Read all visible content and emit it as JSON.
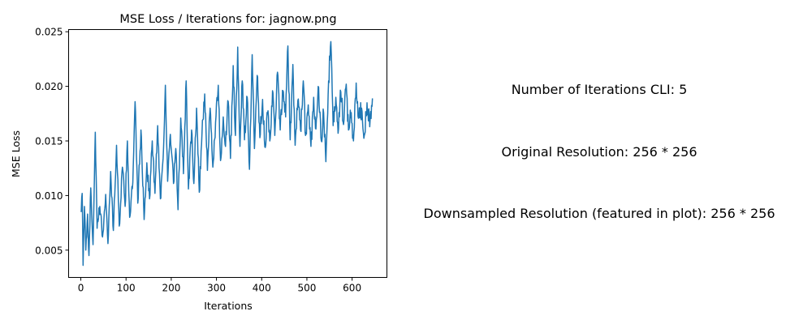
{
  "chart_data": {
    "type": "line",
    "title": "MSE Loss / Iterations for: jagnow.png",
    "xlabel": "Iterations",
    "ylabel": "MSE Loss",
    "xlim": [
      -27,
      677
    ],
    "ylim": [
      0.0025,
      0.0252
    ],
    "xticks": [
      0,
      100,
      200,
      300,
      400,
      500,
      600
    ],
    "yticks": [
      0.005,
      0.01,
      0.015,
      0.02,
      0.025
    ],
    "ytick_labels": [
      "0.005",
      "0.010",
      "0.015",
      "0.020",
      "0.025"
    ],
    "grid": false,
    "series": [
      {
        "color": "#1f77b4",
        "x_start": 0,
        "x_end": 645,
        "n_points": 646,
        "anchors": [
          [
            0,
            0.0085
          ],
          [
            3,
            0.0102
          ],
          [
            5,
            0.0036
          ],
          [
            8,
            0.009
          ],
          [
            11,
            0.005
          ],
          [
            15,
            0.0083
          ],
          [
            18,
            0.0045
          ],
          [
            22,
            0.0107
          ],
          [
            27,
            0.0055
          ],
          [
            32,
            0.0158
          ],
          [
            36,
            0.007
          ],
          [
            42,
            0.009
          ],
          [
            48,
            0.0062
          ],
          [
            55,
            0.0101
          ],
          [
            60,
            0.0056
          ],
          [
            66,
            0.0122
          ],
          [
            72,
            0.0068
          ],
          [
            79,
            0.0146
          ],
          [
            85,
            0.0072
          ],
          [
            92,
            0.0126
          ],
          [
            98,
            0.009
          ],
          [
            103,
            0.015
          ],
          [
            108,
            0.008
          ],
          [
            115,
            0.0112
          ],
          [
            120,
            0.0186
          ],
          [
            126,
            0.0093
          ],
          [
            133,
            0.016
          ],
          [
            140,
            0.0078
          ],
          [
            146,
            0.013
          ],
          [
            152,
            0.0097
          ],
          [
            158,
            0.015
          ],
          [
            164,
            0.0102
          ],
          [
            170,
            0.0164
          ],
          [
            176,
            0.0097
          ],
          [
            182,
            0.0134
          ],
          [
            187,
            0.0201
          ],
          [
            192,
            0.0113
          ],
          [
            198,
            0.0156
          ],
          [
            205,
            0.0111
          ],
          [
            210,
            0.0143
          ],
          [
            215,
            0.0087
          ],
          [
            221,
            0.0171
          ],
          [
            227,
            0.012
          ],
          [
            233,
            0.0205
          ],
          [
            238,
            0.0106
          ],
          [
            245,
            0.016
          ],
          [
            250,
            0.0111
          ],
          [
            256,
            0.018
          ],
          [
            262,
            0.0103
          ],
          [
            268,
            0.0157
          ],
          [
            274,
            0.0193
          ],
          [
            280,
            0.0123
          ],
          [
            286,
            0.018
          ],
          [
            292,
            0.0126
          ],
          [
            298,
            0.0167
          ],
          [
            304,
            0.0201
          ],
          [
            309,
            0.0132
          ],
          [
            315,
            0.0172
          ],
          [
            320,
            0.0145
          ],
          [
            326,
            0.0186
          ],
          [
            331,
            0.0134
          ],
          [
            337,
            0.0219
          ],
          [
            342,
            0.0155
          ],
          [
            347,
            0.0236
          ],
          [
            352,
            0.0145
          ],
          [
            357,
            0.0205
          ],
          [
            362,
            0.0151
          ],
          [
            368,
            0.019
          ],
          [
            373,
            0.0124
          ],
          [
            379,
            0.0229
          ],
          [
            384,
            0.0143
          ],
          [
            390,
            0.021
          ],
          [
            396,
            0.0153
          ],
          [
            402,
            0.0188
          ],
          [
            408,
            0.0144
          ],
          [
            413,
            0.0175
          ],
          [
            418,
            0.015
          ],
          [
            424,
            0.0196
          ],
          [
            429,
            0.0155
          ],
          [
            435,
            0.0213
          ],
          [
            441,
            0.016
          ],
          [
            447,
            0.0196
          ],
          [
            453,
            0.0172
          ],
          [
            458,
            0.0237
          ],
          [
            463,
            0.0151
          ],
          [
            469,
            0.022
          ],
          [
            474,
            0.0146
          ],
          [
            480,
            0.0187
          ],
          [
            486,
            0.016
          ],
          [
            492,
            0.0205
          ],
          [
            497,
            0.0155
          ],
          [
            503,
            0.0183
          ],
          [
            509,
            0.0145
          ],
          [
            515,
            0.019
          ],
          [
            520,
            0.0161
          ],
          [
            526,
            0.0199
          ],
          [
            532,
            0.015
          ],
          [
            537,
            0.0176
          ],
          [
            542,
            0.0131
          ],
          [
            548,
            0.0205
          ],
          [
            553,
            0.0241
          ],
          [
            558,
            0.0164
          ],
          [
            564,
            0.019
          ],
          [
            569,
            0.0157
          ],
          [
            575,
            0.0195
          ],
          [
            581,
            0.0165
          ],
          [
            587,
            0.0202
          ],
          [
            592,
            0.016
          ],
          [
            598,
            0.0176
          ],
          [
            603,
            0.015
          ],
          [
            609,
            0.0203
          ],
          [
            615,
            0.0171
          ],
          [
            621,
            0.018
          ],
          [
            627,
            0.0155
          ],
          [
            633,
            0.0185
          ],
          [
            639,
            0.0163
          ],
          [
            645,
            0.0189
          ]
        ]
      }
    ]
  },
  "info": {
    "iterations_cli": "Number of Iterations CLI: 5",
    "original_resolution": "Original Resolution: 256 * 256",
    "downsampled_resolution": "Downsampled Resolution (featured in plot): 256 * 256"
  }
}
